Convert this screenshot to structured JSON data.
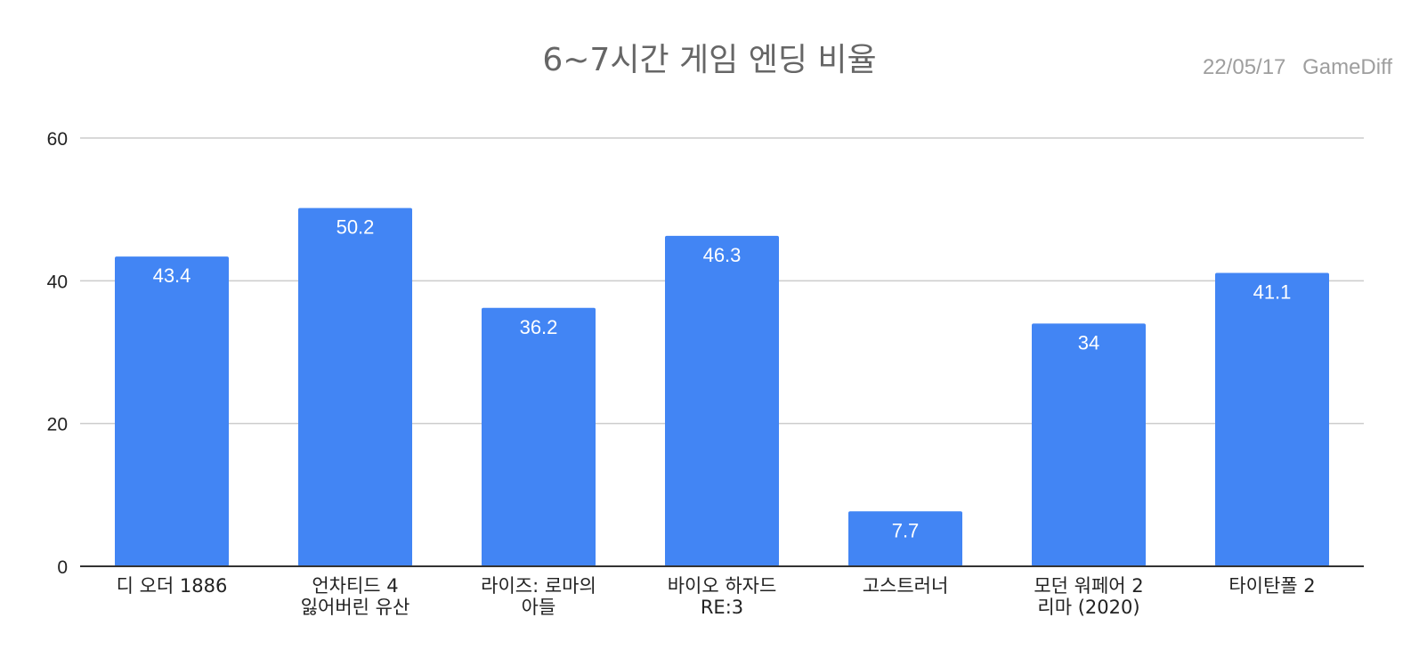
{
  "chart_data": {
    "type": "bar",
    "title": "6~7시간 게임 엔딩 비율",
    "date": "22/05/17",
    "source": "GameDiff",
    "categories": [
      [
        "디 오더 1886"
      ],
      [
        "언차티드 4",
        "잃어버린 유산"
      ],
      [
        "라이즈: 로마의",
        "아들"
      ],
      [
        "바이오 하자드",
        "RE:3"
      ],
      [
        "고스트러너"
      ],
      [
        "모던 워페어 2",
        "리마 (2020)"
      ],
      [
        "타이탄폴 2"
      ]
    ],
    "values": [
      43.4,
      50.2,
      36.2,
      46.3,
      7.7,
      34,
      41.1
    ],
    "value_labels": [
      "43.4",
      "50.2",
      "36.2",
      "46.3",
      "7.7",
      "34",
      "41.1"
    ],
    "ylim": [
      0,
      60
    ],
    "yticks": [
      "0",
      "20",
      "40",
      "60"
    ],
    "xlabel": "",
    "ylabel": "",
    "grid": true,
    "legend": "none",
    "bar_color": "#4285f4",
    "grid_color": "#cccccc"
  }
}
